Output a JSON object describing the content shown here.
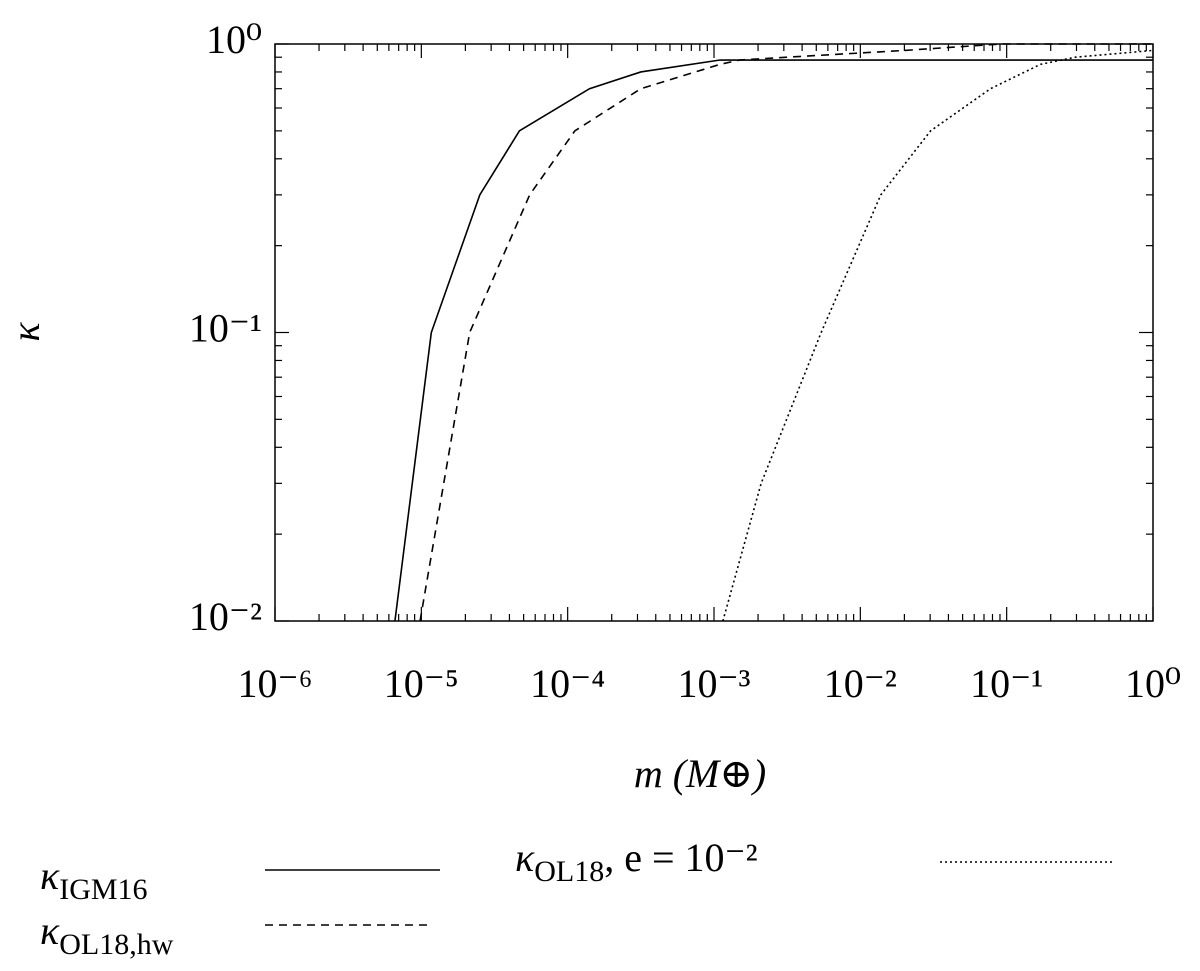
{
  "chart_data": {
    "type": "line",
    "x_label": "m (M⊕)",
    "y_label": "κ",
    "xscale": "log",
    "yscale": "log",
    "xlim": [
      1e-06,
      1
    ],
    "ylim": [
      0.01,
      1
    ],
    "xticks": [
      {
        "value": 1e-06,
        "label": "10⁻⁶"
      },
      {
        "value": 1e-05,
        "label": "10⁻⁵"
      },
      {
        "value": 0.0001,
        "label": "10⁻⁴"
      },
      {
        "value": 0.001,
        "label": "10⁻³"
      },
      {
        "value": 0.01,
        "label": "10⁻²"
      },
      {
        "value": 0.1,
        "label": "10⁻¹"
      },
      {
        "value": 1,
        "label": "10⁰"
      }
    ],
    "yticks": [
      {
        "value": 0.01,
        "label": "10⁻²"
      },
      {
        "value": 0.1,
        "label": "10⁻¹"
      },
      {
        "value": 1,
        "label": "10⁰"
      }
    ],
    "minor_ticks": true,
    "grid": false,
    "series": [
      {
        "name": "κIGM16",
        "color": "#000000",
        "dash": "solid",
        "x": [
          6.6e-06,
          1.17e-05,
          2.51e-05,
          4.68e-05,
          0.000141,
          0.000316,
          0.0011,
          0.01,
          0.1,
          1
        ],
        "values": [
          0.01,
          0.1,
          0.3,
          0.5,
          0.7,
          0.8,
          0.88,
          0.88,
          0.88,
          0.88
        ]
      },
      {
        "name": "κOL18,hw",
        "color": "#000000",
        "dash": "dashed",
        "x": [
          9.8e-06,
          2.14e-05,
          5.5e-05,
          0.000112,
          0.000316,
          0.0011,
          0.0015,
          0.00316,
          0.02,
          0.05,
          0.091,
          1
        ],
        "values": [
          0.01,
          0.1,
          0.3,
          0.5,
          0.7,
          0.85,
          0.88,
          0.9,
          0.95,
          0.98,
          1,
          1
        ]
      },
      {
        "name": "κOL18, e = 10⁻²",
        "color": "#000000",
        "dash": "dotted",
        "x": [
          0.00115,
          0.0021,
          0.0054,
          0.0138,
          0.0302,
          0.0776,
          0.17,
          0.295,
          1
        ],
        "values": [
          0.01,
          0.03,
          0.1,
          0.3,
          0.5,
          0.7,
          0.85,
          0.9,
          0.95
        ]
      }
    ]
  }
}
